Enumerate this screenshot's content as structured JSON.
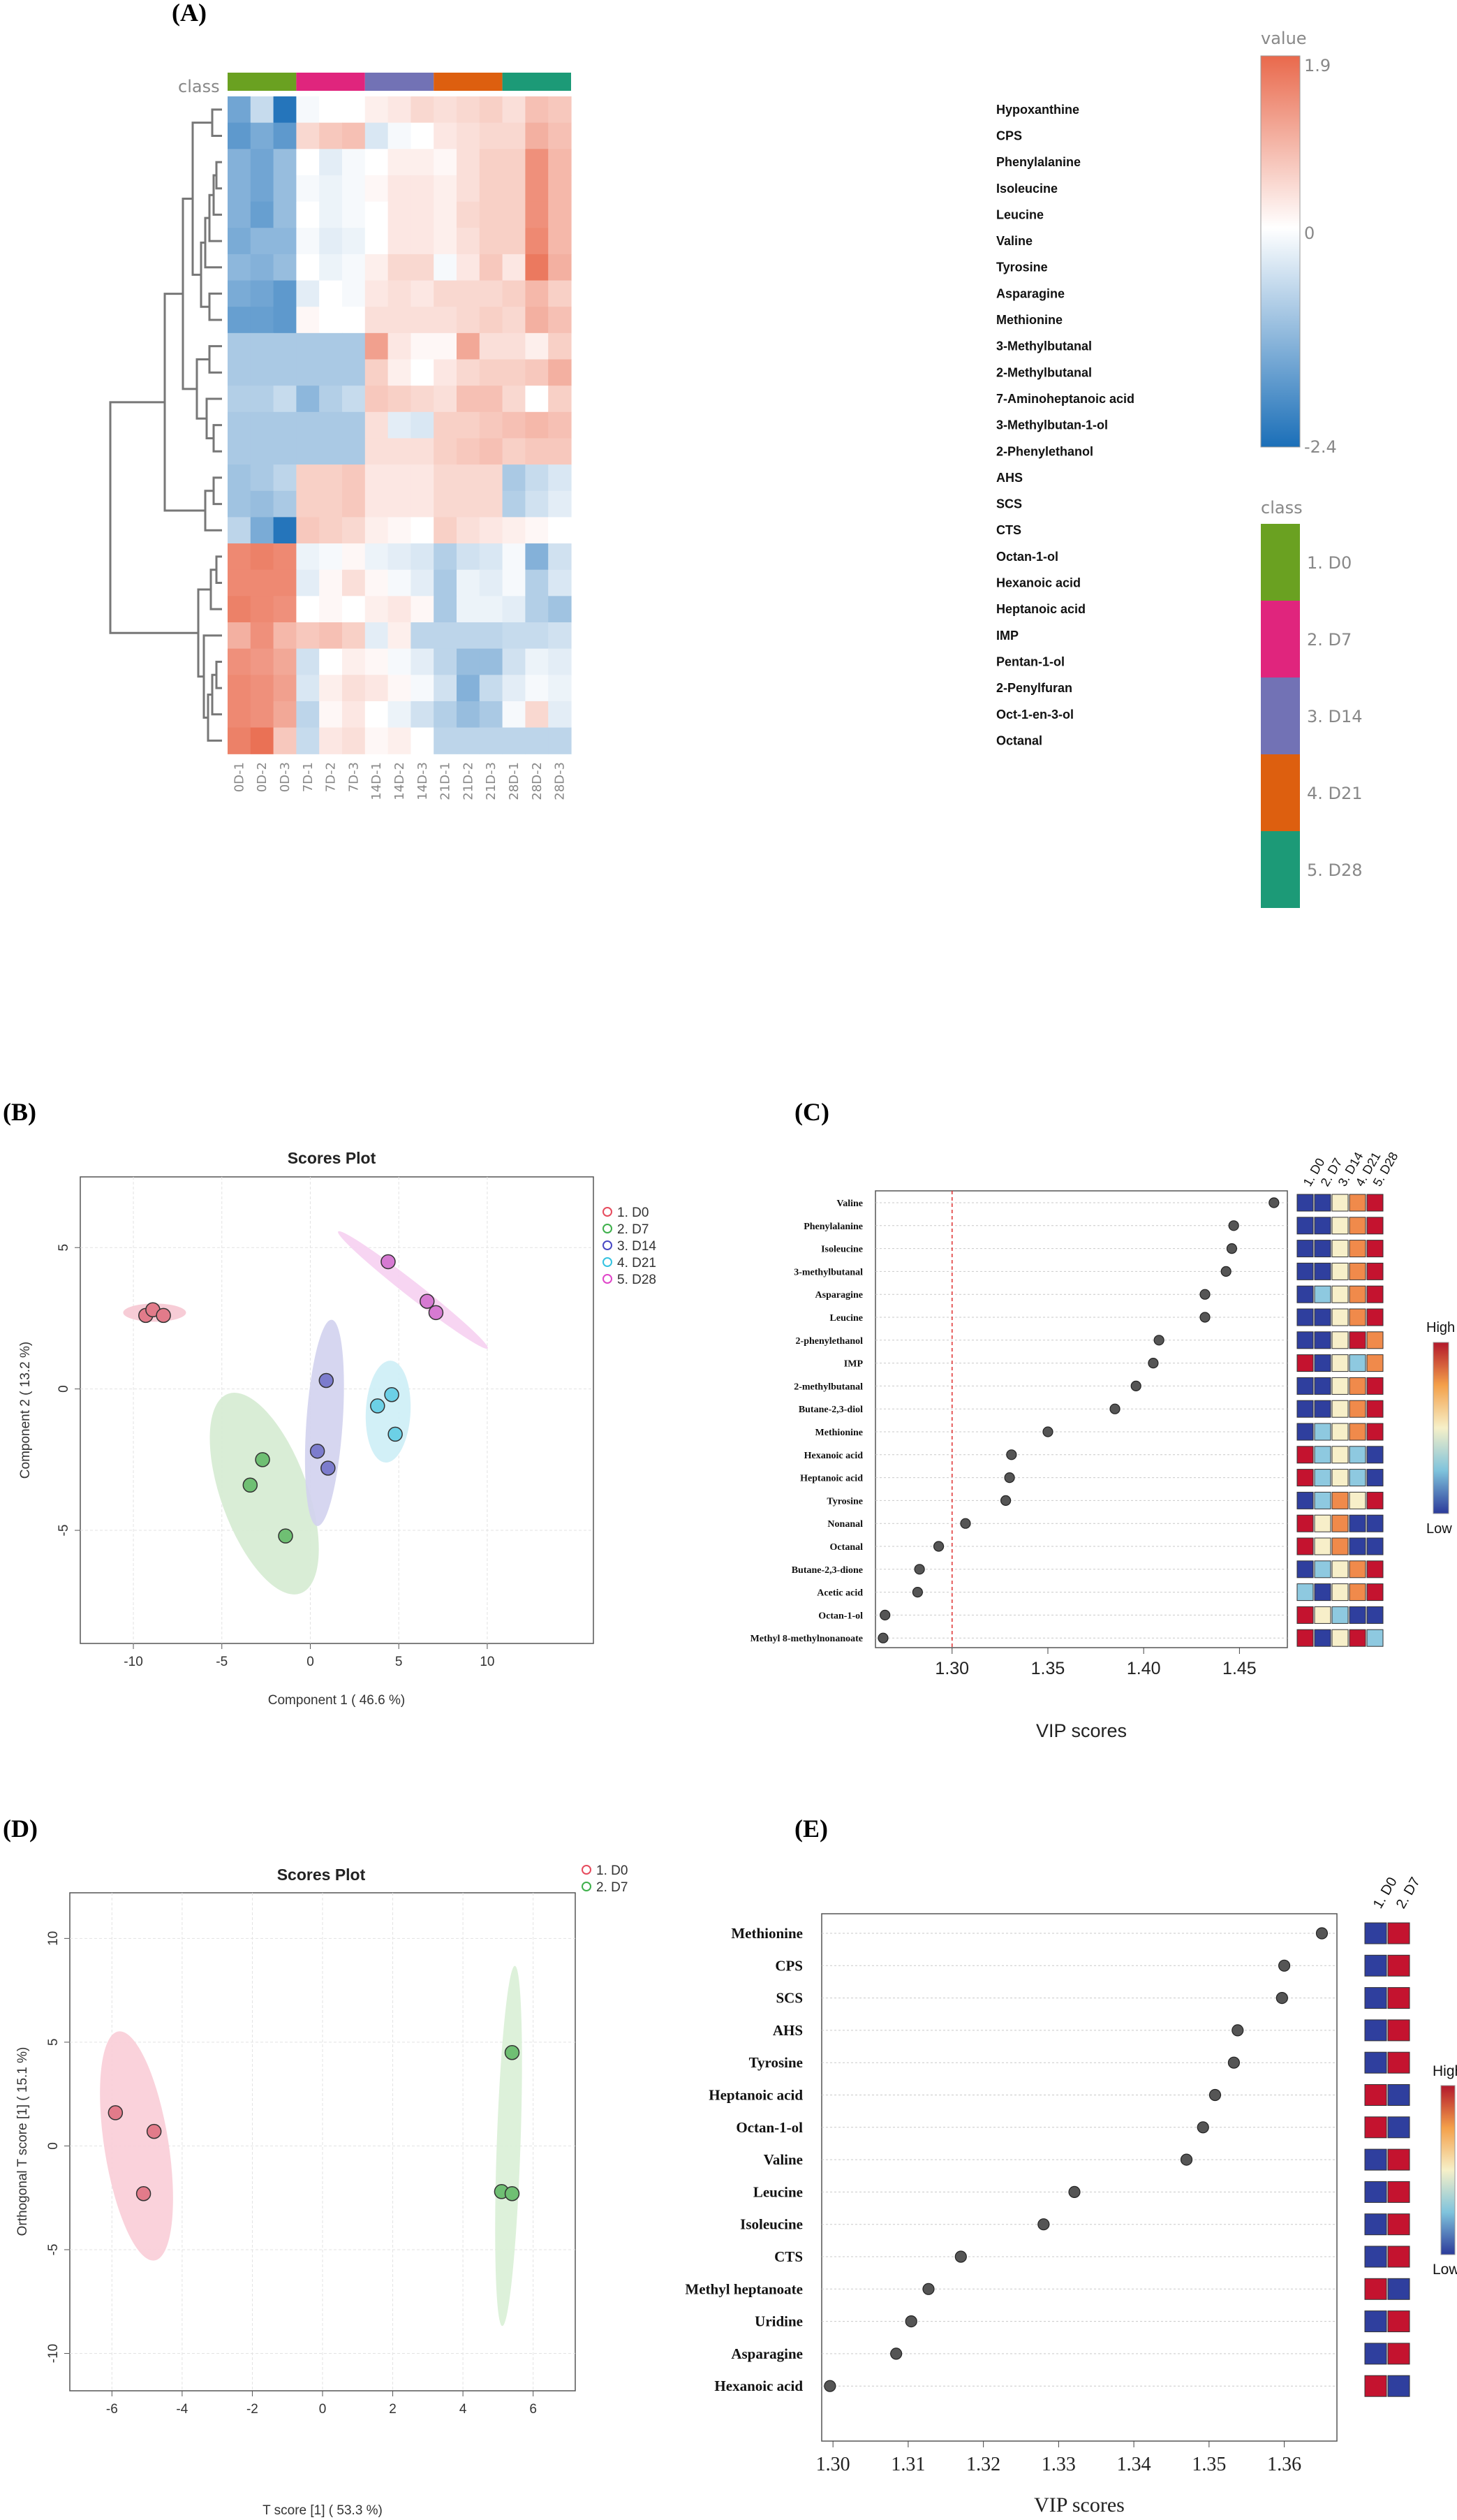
{
  "panel_labels": {
    "a": "(A)",
    "b": "(B)",
    "c": "(C)",
    "d": "(D)",
    "e": "(E)"
  },
  "colors": {
    "d0": "#6aa121",
    "d7": "#e0257d",
    "d14": "#7272b5",
    "d21": "#dd5f0f",
    "d28": "#1c9a77"
  },
  "chart_data": [
    {
      "type": "heatmap",
      "panel": "A",
      "class_label": "class",
      "rows": [
        "Hypoxanthine",
        "CPS",
        "Phenylalanine",
        "Isoleucine",
        "Leucine",
        "Valine",
        "Tyrosine",
        "Asparagine",
        "Methionine",
        "3-Methylbutanal",
        "2-Methylbutanal",
        "7-Aminoheptanoic acid",
        "3-Methylbutan-1-ol",
        "2-Phenylethanol",
        "AHS",
        "SCS",
        "CTS",
        "Octan-1-ol",
        "Hexanoic acid",
        "Heptanoic acid",
        "IMP",
        "Pentan-1-ol",
        "2-Penylfuran",
        "Oct-1-en-3-ol",
        "Octanal"
      ],
      "columns": [
        "0D-1",
        "0D-2",
        "0D-3",
        "7D-1",
        "7D-2",
        "7D-3",
        "14D-1",
        "14D-2",
        "14D-3",
        "21D-1",
        "21D-2",
        "21D-3",
        "28D-1",
        "28D-2",
        "28D-3"
      ],
      "values": [
        [
          -1.5,
          -0.6,
          -2.3,
          -0.1,
          0.0,
          0.0,
          0.2,
          0.3,
          0.5,
          0.4,
          0.5,
          0.6,
          0.4,
          0.8,
          0.7
        ],
        [
          -1.7,
          -1.4,
          -1.7,
          0.5,
          0.7,
          0.8,
          -0.4,
          -0.1,
          0.0,
          0.3,
          0.4,
          0.5,
          0.5,
          1.0,
          0.8
        ],
        [
          -1.3,
          -1.5,
          -1.1,
          0.0,
          -0.3,
          -0.1,
          0.0,
          0.2,
          0.2,
          0.1,
          0.4,
          0.6,
          0.6,
          1.4,
          0.9
        ],
        [
          -1.3,
          -1.5,
          -1.1,
          -0.1,
          -0.2,
          -0.1,
          0.1,
          0.3,
          0.3,
          0.2,
          0.4,
          0.6,
          0.6,
          1.4,
          0.9
        ],
        [
          -1.3,
          -1.6,
          -1.1,
          0.0,
          -0.2,
          -0.1,
          0.0,
          0.3,
          0.3,
          0.2,
          0.5,
          0.6,
          0.6,
          1.4,
          0.9
        ],
        [
          -1.4,
          -1.2,
          -1.2,
          -0.1,
          -0.3,
          -0.2,
          0.0,
          0.3,
          0.3,
          0.2,
          0.4,
          0.6,
          0.6,
          1.5,
          0.9
        ],
        [
          -1.2,
          -1.3,
          -1.1,
          0.0,
          -0.2,
          -0.1,
          0.2,
          0.5,
          0.5,
          -0.1,
          0.3,
          0.7,
          0.3,
          1.7,
          1.0
        ],
        [
          -1.4,
          -1.5,
          -1.7,
          -0.3,
          0.0,
          -0.1,
          0.3,
          0.4,
          0.3,
          0.5,
          0.5,
          0.5,
          0.6,
          0.9,
          0.6
        ],
        [
          -1.6,
          -1.6,
          -1.7,
          0.1,
          0.0,
          0.0,
          0.4,
          0.4,
          0.4,
          0.4,
          0.5,
          0.6,
          0.5,
          1.0,
          0.8
        ],
        [
          -0.9,
          -0.9,
          -0.9,
          -0.9,
          -0.9,
          -0.9,
          1.2,
          0.3,
          0.1,
          0.1,
          1.1,
          0.4,
          0.4,
          0.2,
          0.6
        ],
        [
          -0.9,
          -0.9,
          -0.9,
          -0.9,
          -0.9,
          -0.9,
          0.6,
          0.2,
          0.0,
          0.3,
          0.5,
          0.6,
          0.6,
          0.7,
          1.0
        ],
        [
          -0.8,
          -0.8,
          -0.6,
          -1.2,
          -0.8,
          -0.6,
          0.7,
          0.6,
          0.5,
          0.4,
          0.8,
          0.8,
          0.5,
          0.0,
          0.6
        ],
        [
          -0.9,
          -0.9,
          -0.9,
          -0.9,
          -0.9,
          -0.9,
          0.4,
          -0.3,
          -0.4,
          0.6,
          0.6,
          0.7,
          0.8,
          0.9,
          0.8
        ],
        [
          -0.9,
          -0.9,
          -0.9,
          -0.9,
          -0.9,
          -0.9,
          0.4,
          0.4,
          0.4,
          0.6,
          0.7,
          0.8,
          0.6,
          0.7,
          0.7
        ],
        [
          -1.0,
          -0.9,
          -0.7,
          0.6,
          0.6,
          0.7,
          0.3,
          0.3,
          0.3,
          0.5,
          0.5,
          0.5,
          -0.9,
          -0.6,
          -0.4
        ],
        [
          -1.0,
          -1.1,
          -0.9,
          0.6,
          0.6,
          0.7,
          0.3,
          0.3,
          0.3,
          0.5,
          0.5,
          0.5,
          -0.8,
          -0.5,
          -0.3
        ],
        [
          -0.7,
          -1.4,
          -2.3,
          0.7,
          0.6,
          0.5,
          0.2,
          0.1,
          0.0,
          0.6,
          0.4,
          0.3,
          0.2,
          0.1,
          0.0
        ],
        [
          1.5,
          1.6,
          1.5,
          -0.2,
          -0.1,
          0.1,
          -0.2,
          -0.3,
          -0.4,
          -0.8,
          -0.5,
          -0.4,
          -0.1,
          -1.3,
          -0.5
        ],
        [
          1.5,
          1.5,
          1.5,
          -0.3,
          0.1,
          0.4,
          0.1,
          -0.1,
          -0.3,
          -0.9,
          -0.2,
          -0.3,
          -0.1,
          -0.8,
          -0.4
        ],
        [
          1.6,
          1.5,
          1.4,
          0.0,
          0.1,
          0.0,
          0.2,
          0.3,
          0.1,
          -0.9,
          -0.2,
          -0.2,
          -0.3,
          -0.8,
          -1.0
        ],
        [
          1.0,
          1.4,
          0.9,
          0.7,
          0.8,
          0.6,
          -0.3,
          0.2,
          -0.7,
          -0.7,
          -0.7,
          -0.7,
          -0.6,
          -0.6,
          -0.5
        ],
        [
          1.4,
          1.3,
          1.1,
          -0.5,
          0.0,
          0.2,
          0.1,
          -0.1,
          -0.3,
          -0.7,
          -1.1,
          -1.1,
          -0.5,
          -0.2,
          -0.3
        ],
        [
          1.5,
          1.4,
          1.2,
          -0.4,
          0.2,
          0.4,
          0.3,
          0.1,
          -0.1,
          -0.5,
          -1.3,
          -0.6,
          -0.3,
          -0.1,
          -0.2
        ],
        [
          1.5,
          1.4,
          1.1,
          -0.7,
          0.1,
          0.3,
          0.0,
          -0.2,
          -0.5,
          -0.8,
          -1.1,
          -0.9,
          -0.1,
          0.5,
          -0.3
        ],
        [
          1.6,
          1.8,
          0.7,
          -0.6,
          0.3,
          0.4,
          0.1,
          0.2,
          0.0,
          -0.7,
          -0.7,
          -0.7,
          -0.7,
          -0.7,
          -0.7
        ]
      ],
      "color_scale": {
        "title": "value",
        "max": 1.9,
        "mid": 0,
        "min": -2.4,
        "max_label": "1.9",
        "mid_label": "0",
        "min_label": "-2.4"
      },
      "class_legend": {
        "title": "class",
        "entries": [
          "1. D0",
          "2. D7",
          "3. D14",
          "4. D21",
          "5. D28"
        ]
      }
    },
    {
      "type": "scatter",
      "panel": "B",
      "title": "Scores Plot",
      "xlabel": "Component 1 ( 46.6 %)",
      "ylabel": "Component 2 ( 13.2 %)",
      "xlim": [
        -13,
        16
      ],
      "ylim": [
        -9,
        7.5
      ],
      "xticks": [
        -10,
        -5,
        0,
        5,
        10
      ],
      "yticks": [
        -5,
        0,
        5
      ],
      "series": [
        {
          "name": "1. D0",
          "points": [
            [
              -9.3,
              2.6
            ],
            [
              -8.9,
              2.8
            ],
            [
              -8.3,
              2.6
            ]
          ]
        },
        {
          "name": "2. D7",
          "points": [
            [
              -3.4,
              -3.4
            ],
            [
              -2.7,
              -2.5
            ],
            [
              -1.4,
              -5.2
            ]
          ]
        },
        {
          "name": "3. D14",
          "points": [
            [
              0.4,
              -2.2
            ],
            [
              0.9,
              0.3
            ],
            [
              1.0,
              -2.8
            ]
          ]
        },
        {
          "name": "4. D21",
          "points": [
            [
              3.8,
              -0.6
            ],
            [
              4.6,
              -0.2
            ],
            [
              4.8,
              -1.6
            ]
          ]
        },
        {
          "name": "5. D28",
          "points": [
            [
              4.4,
              4.5
            ],
            [
              6.6,
              3.1
            ],
            [
              7.1,
              2.7
            ]
          ]
        }
      ]
    },
    {
      "type": "scatter",
      "panel": "C",
      "variant": "vip",
      "xlabel": "VIP scores",
      "xlim": [
        1.26,
        1.475
      ],
      "xticks": [
        "1.30",
        "1.35",
        "1.40",
        "1.45"
      ],
      "threshold": 1.3,
      "groups": [
        "1. D0",
        "2. D7",
        "3. D14",
        "4. D21",
        "5. D28"
      ],
      "color_high": "High",
      "color_low": "Low",
      "features": [
        "Valine",
        "Phenylalanine",
        "Isoleucine",
        "3-methylbutanal",
        "Asparagine",
        "Leucine",
        "2-phenylethanol",
        "IMP",
        "2-methylbutanal",
        "Butane-2,3-diol",
        "Methionine",
        "Hexanoic acid",
        "Heptanoic acid",
        "Tyrosine",
        "Nonanal",
        "Octanal",
        "Butane-2,3-dione",
        "Acetic acid",
        "Octan-1-ol",
        "Methyl 8-methylnonanoate"
      ],
      "vip": [
        1.468,
        1.447,
        1.446,
        1.443,
        1.432,
        1.432,
        1.408,
        1.405,
        1.396,
        1.385,
        1.35,
        1.331,
        1.33,
        1.328,
        1.307,
        1.293,
        1.283,
        1.282,
        1.265,
        1.264
      ],
      "levels": [
        [
          -1,
          -0.4,
          0.2,
          0.6,
          1
        ],
        [
          -1,
          -0.4,
          0.2,
          0.6,
          1
        ],
        [
          -1,
          -0.4,
          0.2,
          0.6,
          1
        ],
        [
          -1,
          -0.9,
          0.1,
          0.6,
          1
        ],
        [
          -1,
          -0.2,
          0.1,
          0.6,
          1
        ],
        [
          -1,
          -0.4,
          0.2,
          0.6,
          1
        ],
        [
          -1,
          -0.9,
          0.1,
          0.9,
          0.6
        ],
        [
          1,
          -0.9,
          0.2,
          -0.1,
          0.5
        ],
        [
          -1,
          -0.9,
          0.2,
          0.6,
          1
        ],
        [
          -1,
          -0.9,
          0.2,
          0.6,
          1
        ],
        [
          -1,
          -0.2,
          0.2,
          0.6,
          1
        ],
        [
          1,
          -0.1,
          0.2,
          -0.3,
          -0.9
        ],
        [
          1,
          -0.1,
          0.2,
          -0.3,
          -0.9
        ],
        [
          -1,
          -0.2,
          0.6,
          0.1,
          1
        ],
        [
          1,
          0.2,
          0.6,
          -0.9,
          -0.9
        ],
        [
          1,
          0.1,
          0.6,
          -0.9,
          -0.9
        ],
        [
          -1,
          -0.3,
          0.2,
          0.6,
          1
        ],
        [
          -0.2,
          -0.9,
          0.2,
          0.6,
          1
        ],
        [
          1,
          0.3,
          -0.2,
          -0.9,
          -0.9
        ],
        [
          1,
          -0.9,
          0.1,
          0.9,
          -0.2
        ]
      ]
    },
    {
      "type": "scatter",
      "panel": "D",
      "title": "Scores Plot",
      "xlabel": "T score [1] ( 53.3 %)",
      "ylabel": "Orthogonal T score [1] ( 15.1 %)",
      "xlim": [
        -7.2,
        7.2
      ],
      "ylim": [
        -11.8,
        12.2
      ],
      "xticks": [
        -6,
        -4,
        -2,
        0,
        2,
        4,
        6
      ],
      "yticks": [
        -10,
        -5,
        0,
        5,
        10
      ],
      "series": [
        {
          "name": "1. D0",
          "points": [
            [
              -5.9,
              1.6
            ],
            [
              -4.8,
              0.7
            ],
            [
              -5.1,
              -2.3
            ]
          ]
        },
        {
          "name": "2. D7",
          "points": [
            [
              5.4,
              4.5
            ],
            [
              5.1,
              -2.2
            ],
            [
              5.4,
              -2.3
            ]
          ]
        }
      ]
    },
    {
      "type": "scatter",
      "panel": "E",
      "variant": "vip",
      "xlabel": "VIP scores",
      "xlim": [
        1.2985,
        1.367
      ],
      "xticks": [
        "1.30",
        "1.31",
        "1.32",
        "1.33",
        "1.34",
        "1.35",
        "1.36"
      ],
      "groups": [
        "1. D0",
        "2. D7"
      ],
      "color_high": "High",
      "color_low": "Low",
      "features": [
        "Methionine",
        "CPS",
        "SCS",
        "AHS",
        "Tyrosine",
        "Heptanoic acid",
        "Octan-1-ol",
        "Valine",
        "Leucine",
        "Isoleucine",
        "CTS",
        "Methyl heptanoate",
        "Uridine",
        "Asparagine",
        "Hexanoic acid"
      ],
      "vip": [
        1.365,
        1.36,
        1.3597,
        1.3538,
        1.3533,
        1.3508,
        1.3492,
        1.347,
        1.3321,
        1.328,
        1.317,
        1.3127,
        1.3104,
        1.3084,
        1.2996
      ],
      "levels": [
        [
          -1,
          1
        ],
        [
          -1,
          1
        ],
        [
          -1,
          1
        ],
        [
          -1,
          1
        ],
        [
          -1,
          1
        ],
        [
          1,
          -1
        ],
        [
          1,
          -1
        ],
        [
          -1,
          1
        ],
        [
          -1,
          1
        ],
        [
          -1,
          1
        ],
        [
          -1,
          1
        ],
        [
          1,
          -1
        ],
        [
          -1,
          1
        ],
        [
          -1,
          1
        ],
        [
          1,
          -1
        ]
      ]
    }
  ]
}
